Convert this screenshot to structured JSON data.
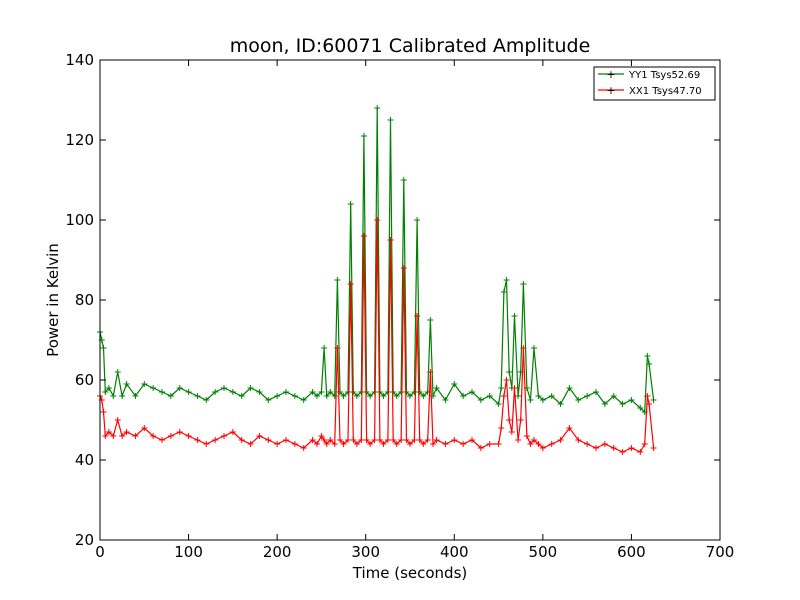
{
  "chart_data": {
    "type": "line",
    "title": "moon, ID:60071 Calibrated Amplitude",
    "xlabel": "Time (seconds)",
    "ylabel": "Power in Kelvin",
    "xlim": [
      0,
      700
    ],
    "ylim": [
      20,
      140
    ],
    "xticks": [
      0,
      100,
      200,
      300,
      400,
      500,
      600,
      700
    ],
    "yticks": [
      20,
      40,
      60,
      80,
      100,
      120,
      140
    ],
    "grid": false,
    "legend_position": "top-right",
    "series": [
      {
        "name": "YY1 Tsys52.69",
        "color": "#008000",
        "x": [
          0,
          2,
          4,
          6,
          10,
          15,
          20,
          25,
          30,
          40,
          50,
          60,
          70,
          80,
          90,
          100,
          110,
          120,
          130,
          140,
          150,
          160,
          170,
          180,
          190,
          200,
          210,
          220,
          230,
          240,
          245,
          250,
          253,
          256,
          260,
          265,
          268,
          271,
          275,
          280,
          283,
          286,
          290,
          295,
          298,
          301,
          305,
          310,
          313,
          316,
          320,
          325,
          328,
          331,
          335,
          340,
          343,
          346,
          350,
          355,
          358,
          361,
          365,
          370,
          373,
          376,
          380,
          390,
          400,
          410,
          420,
          430,
          440,
          450,
          453,
          456,
          459,
          462,
          465,
          468,
          472,
          475,
          478,
          482,
          486,
          490,
          495,
          500,
          510,
          520,
          530,
          540,
          550,
          560,
          570,
          580,
          590,
          600,
          610,
          615,
          618,
          620,
          625
        ],
        "y": [
          72,
          70,
          68,
          57,
          58,
          56,
          62,
          56,
          59,
          56,
          59,
          58,
          57,
          56,
          58,
          57,
          56,
          55,
          57,
          58,
          57,
          56,
          58,
          57,
          55,
          56,
          57,
          56,
          55,
          57,
          56,
          57,
          68,
          56,
          57,
          56,
          85,
          57,
          56,
          57,
          104,
          57,
          56,
          57,
          121,
          57,
          56,
          57,
          128,
          57,
          56,
          57,
          125,
          57,
          56,
          57,
          110,
          57,
          56,
          57,
          100,
          57,
          56,
          57,
          75,
          56,
          58,
          55,
          59,
          56,
          57,
          55,
          56,
          54,
          58,
          82,
          85,
          62,
          58,
          76,
          56,
          62,
          84,
          58,
          55,
          68,
          56,
          55,
          56,
          54,
          58,
          55,
          56,
          57,
          54,
          56,
          54,
          55,
          53,
          52,
          66,
          64,
          55
        ]
      },
      {
        "name": "XX1 Tsys47.70",
        "color": "#ff0000",
        "x": [
          0,
          2,
          4,
          6,
          10,
          15,
          20,
          25,
          30,
          40,
          50,
          60,
          70,
          80,
          90,
          100,
          110,
          120,
          130,
          140,
          150,
          160,
          170,
          180,
          190,
          200,
          210,
          220,
          230,
          240,
          245,
          250,
          253,
          256,
          260,
          265,
          268,
          271,
          275,
          280,
          283,
          286,
          290,
          295,
          298,
          301,
          305,
          310,
          313,
          316,
          320,
          325,
          328,
          331,
          335,
          340,
          343,
          346,
          350,
          355,
          358,
          361,
          365,
          370,
          373,
          376,
          380,
          390,
          400,
          410,
          420,
          430,
          440,
          450,
          453,
          456,
          459,
          462,
          465,
          468,
          472,
          475,
          478,
          482,
          486,
          490,
          495,
          500,
          510,
          520,
          530,
          540,
          550,
          560,
          570,
          580,
          590,
          600,
          610,
          615,
          618,
          620,
          625
        ],
        "y": [
          56,
          55,
          52,
          46,
          47,
          46,
          50,
          46,
          47,
          46,
          48,
          46,
          45,
          46,
          47,
          46,
          45,
          44,
          45,
          46,
          47,
          45,
          44,
          46,
          45,
          44,
          45,
          44,
          43,
          45,
          44,
          46,
          45,
          44,
          45,
          44,
          68,
          45,
          44,
          45,
          84,
          45,
          44,
          45,
          96,
          45,
          44,
          45,
          100,
          45,
          44,
          45,
          95,
          45,
          44,
          45,
          88,
          45,
          44,
          45,
          76,
          45,
          44,
          45,
          62,
          44,
          45,
          44,
          45,
          44,
          45,
          43,
          44,
          44,
          48,
          56,
          60,
          50,
          47,
          58,
          45,
          50,
          68,
          46,
          44,
          45,
          44,
          43,
          44,
          45,
          48,
          45,
          44,
          43,
          44,
          43,
          42,
          43,
          42,
          44,
          56,
          54,
          43
        ]
      }
    ]
  }
}
